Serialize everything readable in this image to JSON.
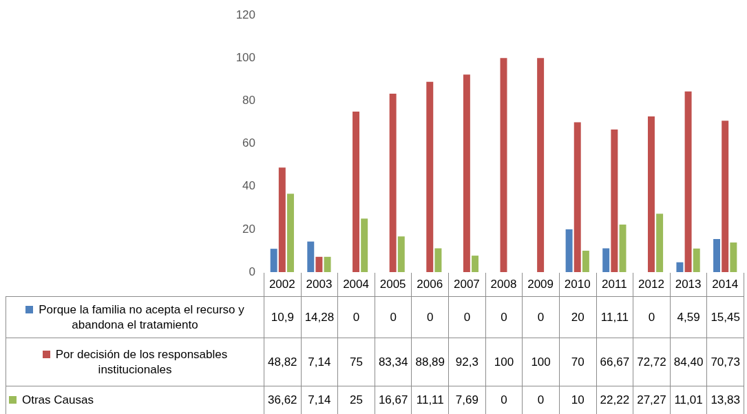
{
  "chart_data": {
    "type": "bar",
    "categories": [
      "2002",
      "2003",
      "2004",
      "2005",
      "2006",
      "2007",
      "2008",
      "2009",
      "2010",
      "2011",
      "2012",
      "2013",
      "2014"
    ],
    "series": [
      {
        "name": "Porque la familia no acepta el recurso y abandona el tratamiento",
        "color": "#4f81bd",
        "values": [
          10.9,
          14.28,
          0,
          0,
          0,
          0,
          0,
          0,
          20,
          11.11,
          0,
          4.59,
          15.45
        ],
        "value_labels": [
          "10,9",
          "14,28",
          "0",
          "0",
          "0",
          "0",
          "0",
          "0",
          "20",
          "11,11",
          "0",
          "4,59",
          "15,45"
        ]
      },
      {
        "name": "Por decisión de los responsables institucionales",
        "color": "#c0504d",
        "values": [
          48.82,
          7.14,
          75,
          83.34,
          88.89,
          92.3,
          100,
          100,
          70,
          66.67,
          72.72,
          84.4,
          70.73
        ],
        "value_labels": [
          "48,82",
          "7,14",
          "75",
          "83,34",
          "88,89",
          "92,3",
          "100",
          "100",
          "70",
          "66,67",
          "72,72",
          "84,40",
          "70,73"
        ]
      },
      {
        "name": "Otras Causas",
        "color": "#9bbb59",
        "values": [
          36.62,
          7.14,
          25,
          16.67,
          11.11,
          7.69,
          0,
          0,
          10,
          22.22,
          27.27,
          11.01,
          13.83
        ],
        "value_labels": [
          "36,62",
          "7,14",
          "25",
          "16,67",
          "11,11",
          "7,69",
          "0",
          "0",
          "10",
          "22,22",
          "27,27",
          "11,01",
          "13,83"
        ]
      }
    ],
    "ylim": [
      0,
      120
    ],
    "yticks": [
      0,
      20,
      40,
      60,
      80,
      100,
      120
    ],
    "grid": false,
    "legend": "bottom left"
  }
}
